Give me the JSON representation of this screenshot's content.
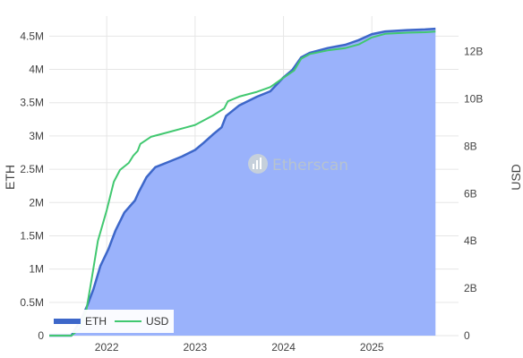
{
  "watermark": {
    "text": "Etherscan"
  },
  "chart_data": {
    "type": "area",
    "title": "",
    "xlabel": "",
    "ylabel": "ETH",
    "y2label": "USD",
    "grid": true,
    "legend_position": "bottom-left",
    "xlim": [
      2021.35,
      2025.98
    ],
    "ylim": [
      0,
      4800000
    ],
    "y2lim": [
      0,
      13.5
    ],
    "x_ticks": [
      2022,
      2023,
      2024,
      2025
    ],
    "x_tick_labels": [
      "2022",
      "2023",
      "2024",
      "2025"
    ],
    "y_ticks": [
      0,
      500000,
      1000000,
      1500000,
      2000000,
      2500000,
      3000000,
      3500000,
      4000000,
      4500000
    ],
    "y_tick_labels": [
      "0",
      "0.5M",
      "1M",
      "1.5M",
      "2M",
      "2.5M",
      "3M",
      "3.5M",
      "4M",
      "4.5M"
    ],
    "y2_ticks": [
      0,
      2,
      4,
      6,
      8,
      10,
      12
    ],
    "y2_tick_labels": [
      "0",
      "2B",
      "4B",
      "6B",
      "8B",
      "10B",
      "12B"
    ],
    "series": [
      {
        "name": "ETH",
        "axis": "left",
        "color": "#3d67c9",
        "fill": "#9ab2fb",
        "x": [
          2021.35,
          2021.6,
          2021.72,
          2021.78,
          2021.85,
          2021.93,
          2022.02,
          2022.1,
          2022.2,
          2022.32,
          2022.36,
          2022.45,
          2022.55,
          2022.7,
          2022.85,
          2023.0,
          2023.1,
          2023.2,
          2023.3,
          2023.35,
          2023.5,
          2023.7,
          2023.85,
          2024.0,
          2024.1,
          2024.2,
          2024.3,
          2024.5,
          2024.7,
          2024.85,
          2025.0,
          2025.15,
          2025.4,
          2025.6,
          2025.72
        ],
        "values": [
          0,
          0,
          270000,
          450000,
          700000,
          1050000,
          1300000,
          1580000,
          1850000,
          2030000,
          2150000,
          2380000,
          2530000,
          2610000,
          2690000,
          2790000,
          2900000,
          3020000,
          3130000,
          3300000,
          3460000,
          3590000,
          3670000,
          3880000,
          3990000,
          4180000,
          4250000,
          4320000,
          4370000,
          4440000,
          4530000,
          4570000,
          4590000,
          4600000,
          4610000
        ]
      },
      {
        "name": "USD",
        "axis": "right",
        "color": "#41c870",
        "x": [
          2021.35,
          2021.6,
          2021.7,
          2021.77,
          2021.83,
          2021.9,
          2022.0,
          2022.08,
          2022.15,
          2022.25,
          2022.3,
          2022.35,
          2022.38,
          2022.5,
          2022.7,
          2022.9,
          2023.0,
          2023.2,
          2023.33,
          2023.37,
          2023.5,
          2023.7,
          2023.85,
          2024.0,
          2024.12,
          2024.2,
          2024.3,
          2024.5,
          2024.7,
          2024.85,
          2025.0,
          2025.15,
          2025.4,
          2025.6,
          2025.72
        ],
        "values": [
          0,
          0,
          0.3,
          1.1,
          2.4,
          4.0,
          5.3,
          6.5,
          7.0,
          7.3,
          7.6,
          7.8,
          8.1,
          8.4,
          8.6,
          8.8,
          8.9,
          9.3,
          9.6,
          9.9,
          10.1,
          10.3,
          10.5,
          10.9,
          11.2,
          11.7,
          11.9,
          12.05,
          12.15,
          12.3,
          12.6,
          12.75,
          12.8,
          12.82,
          12.85
        ]
      }
    ]
  }
}
